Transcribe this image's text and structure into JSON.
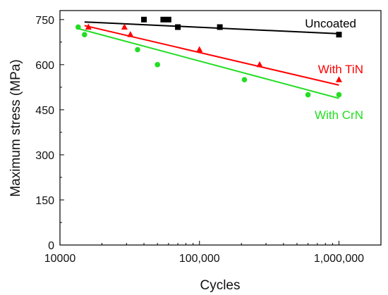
{
  "chart_data": {
    "type": "scatter",
    "xlabel": "Cycles",
    "ylabel": "Maximum stress (MPa)",
    "x_scale": "log",
    "xlim": [
      10000,
      2000000
    ],
    "ylim": [
      0,
      780
    ],
    "x_ticks": [
      {
        "value": 10000,
        "label": "10000"
      },
      {
        "value": 100000,
        "label": "100,000"
      },
      {
        "value": 1000000,
        "label": "1,000,000"
      }
    ],
    "y_ticks": [
      0,
      150,
      300,
      450,
      600,
      750
    ],
    "y_tick_labels": [
      "0",
      "150",
      "300",
      "450",
      "600",
      "750"
    ],
    "grid": false,
    "series": [
      {
        "name": "Uncoated",
        "color": "#000000",
        "marker": "square",
        "points": [
          {
            "x": 40000,
            "y": 750
          },
          {
            "x": 55000,
            "y": 750
          },
          {
            "x": 60000,
            "y": 750
          },
          {
            "x": 70000,
            "y": 725
          },
          {
            "x": 140000,
            "y": 725
          },
          {
            "x": 1000000,
            "y": 700
          }
        ],
        "fit": {
          "x": [
            15000,
            1000000
          ],
          "y": [
            742,
            703
          ]
        }
      },
      {
        "name": "With TiN",
        "color": "#ff0000",
        "marker": "triangle",
        "points": [
          {
            "x": 16000,
            "y": 725
          },
          {
            "x": 29000,
            "y": 725
          },
          {
            "x": 32000,
            "y": 700
          },
          {
            "x": 100000,
            "y": 650
          },
          {
            "x": 270000,
            "y": 600
          },
          {
            "x": 1000000,
            "y": 550
          }
        ],
        "fit": {
          "x": [
            15000,
            1000000
          ],
          "y": [
            730,
            532
          ]
        }
      },
      {
        "name": "With CrN",
        "color": "#22dd22",
        "marker": "circle",
        "points": [
          {
            "x": 13500,
            "y": 725
          },
          {
            "x": 15000,
            "y": 700
          },
          {
            "x": 36000,
            "y": 650
          },
          {
            "x": 50000,
            "y": 600
          },
          {
            "x": 210000,
            "y": 550
          },
          {
            "x": 600000,
            "y": 500
          },
          {
            "x": 1000000,
            "y": 500
          }
        ],
        "fit": {
          "x": [
            13500,
            1000000
          ],
          "y": [
            720,
            488
          ]
        }
      }
    ]
  }
}
